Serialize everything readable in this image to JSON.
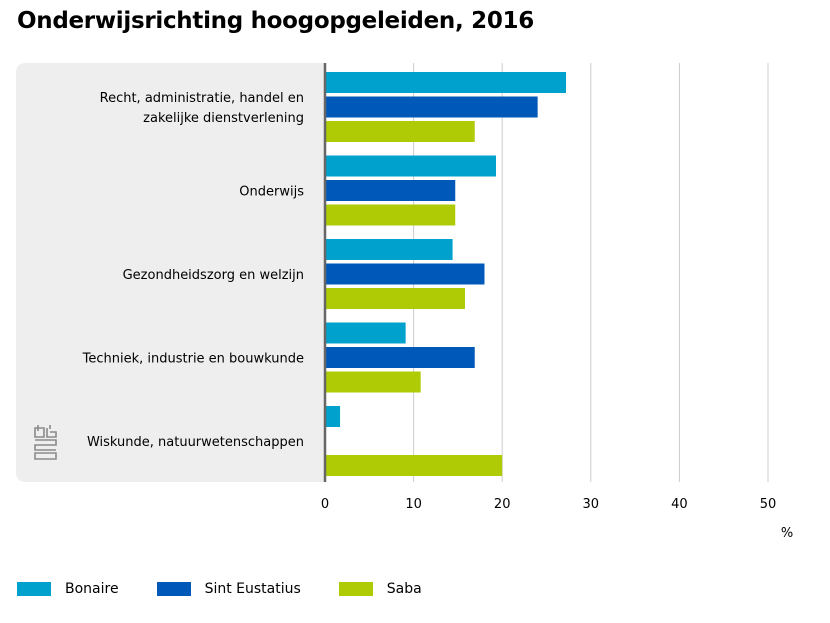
{
  "title": "Onderwijsrichting hoogopgeleiden, 2016",
  "colors": {
    "Bonaire": "#00a1cd",
    "Sint Eustatius": "#0058b8",
    "Saba": "#afcb05",
    "panel_background": "#eeeeee",
    "gridline": "#cccccc",
    "axis": "#666666"
  },
  "chart_data": {
    "type": "bar",
    "orientation": "horizontal",
    "title": "Onderwijsrichting hoogopgeleiden, 2016",
    "xlabel": "%",
    "ylabel": "",
    "xlim": [
      0,
      50
    ],
    "xticks": [
      0,
      10,
      20,
      30,
      40,
      50
    ],
    "grid": true,
    "legend_position": "bottom-left",
    "categories": [
      [
        "Recht, administratie, handel en",
        "zakelijke dienstverlening"
      ],
      [
        "Onderwijs"
      ],
      [
        "Gezondheidszorg en welzijn"
      ],
      [
        "Techniek, industrie en bouwkunde"
      ],
      [
        "Wiskunde, natuurwetenschappen"
      ]
    ],
    "series": [
      {
        "name": "Bonaire",
        "values": [
          27.2,
          19.3,
          14.4,
          9.1,
          1.7
        ]
      },
      {
        "name": "Sint Eustatius",
        "values": [
          24.0,
          14.7,
          18.0,
          16.9,
          0
        ]
      },
      {
        "name": "Saba",
        "values": [
          16.9,
          14.7,
          15.8,
          10.8,
          20.0
        ]
      }
    ]
  }
}
